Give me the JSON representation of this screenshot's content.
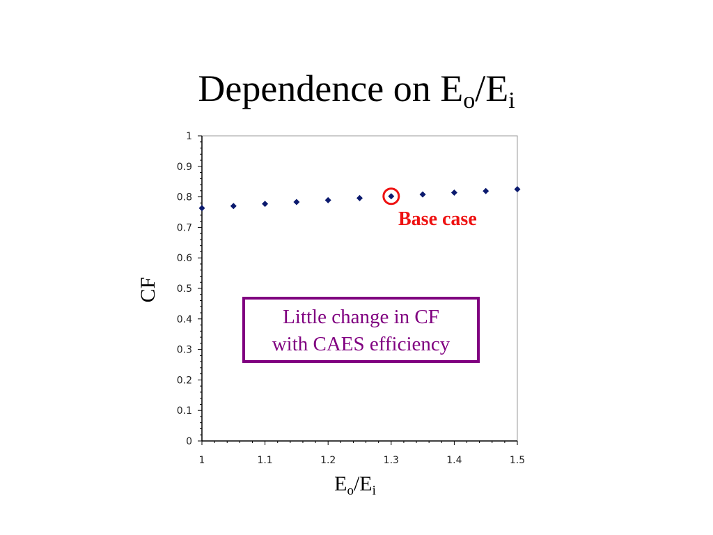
{
  "title": {
    "main": "Dependence on E",
    "sub1": "o",
    "slash": "/E",
    "sub2": "i"
  },
  "chart_data": {
    "type": "scatter",
    "xlabel": {
      "main": "E",
      "sub1": "o",
      "slash": "/E",
      "sub2": "i"
    },
    "ylabel": "CF",
    "xlim": [
      1,
      1.5
    ],
    "ylim": [
      0,
      1
    ],
    "xticks": [
      "1",
      "1.1",
      "1.2",
      "1.3",
      "1.4",
      "1.5"
    ],
    "yticks": [
      "0",
      "0.1",
      "0.2",
      "0.3",
      "0.4",
      "0.5",
      "0.6",
      "0.7",
      "0.8",
      "0.9",
      "1"
    ],
    "series": [
      {
        "x": [
          1.0,
          1.05,
          1.1,
          1.15,
          1.2,
          1.25,
          1.3,
          1.35,
          1.4,
          1.45,
          1.5
        ],
        "y": [
          0.763,
          0.77,
          0.777,
          0.783,
          0.789,
          0.796,
          0.802,
          0.808,
          0.814,
          0.819,
          0.825
        ]
      }
    ],
    "grid": false,
    "highlight": {
      "x": 1.3,
      "y": 0.802,
      "label": "Base case",
      "color": "#ee1111"
    },
    "annotation": {
      "lines": [
        "Little change in CF",
        "with CAES efficiency"
      ],
      "color": "#800080"
    },
    "marker_color": "#0b1a6e"
  }
}
